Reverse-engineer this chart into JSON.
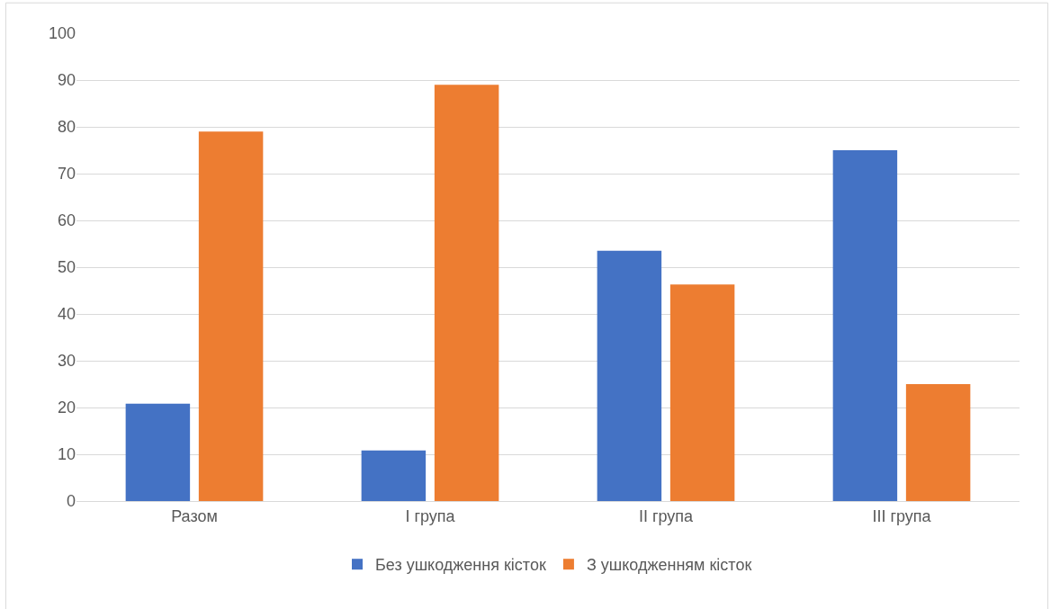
{
  "chart_data": {
    "type": "bar",
    "categories": [
      "Разом",
      "I група",
      "II група",
      "III група"
    ],
    "series": [
      {
        "name": "Без ушкодження кісток",
        "color": "#4472c4",
        "values": [
          20.8,
          10.8,
          53.5,
          75.0
        ]
      },
      {
        "name": "З ушкодженням кісток",
        "color": "#ed7d31",
        "values": [
          79.0,
          89.0,
          46.3,
          25.0
        ]
      }
    ],
    "ylim": [
      0,
      100
    ],
    "yticks": [
      0,
      10,
      20,
      30,
      40,
      50,
      60,
      70,
      80,
      90,
      100
    ],
    "grid": "y",
    "legend": "bottom"
  }
}
